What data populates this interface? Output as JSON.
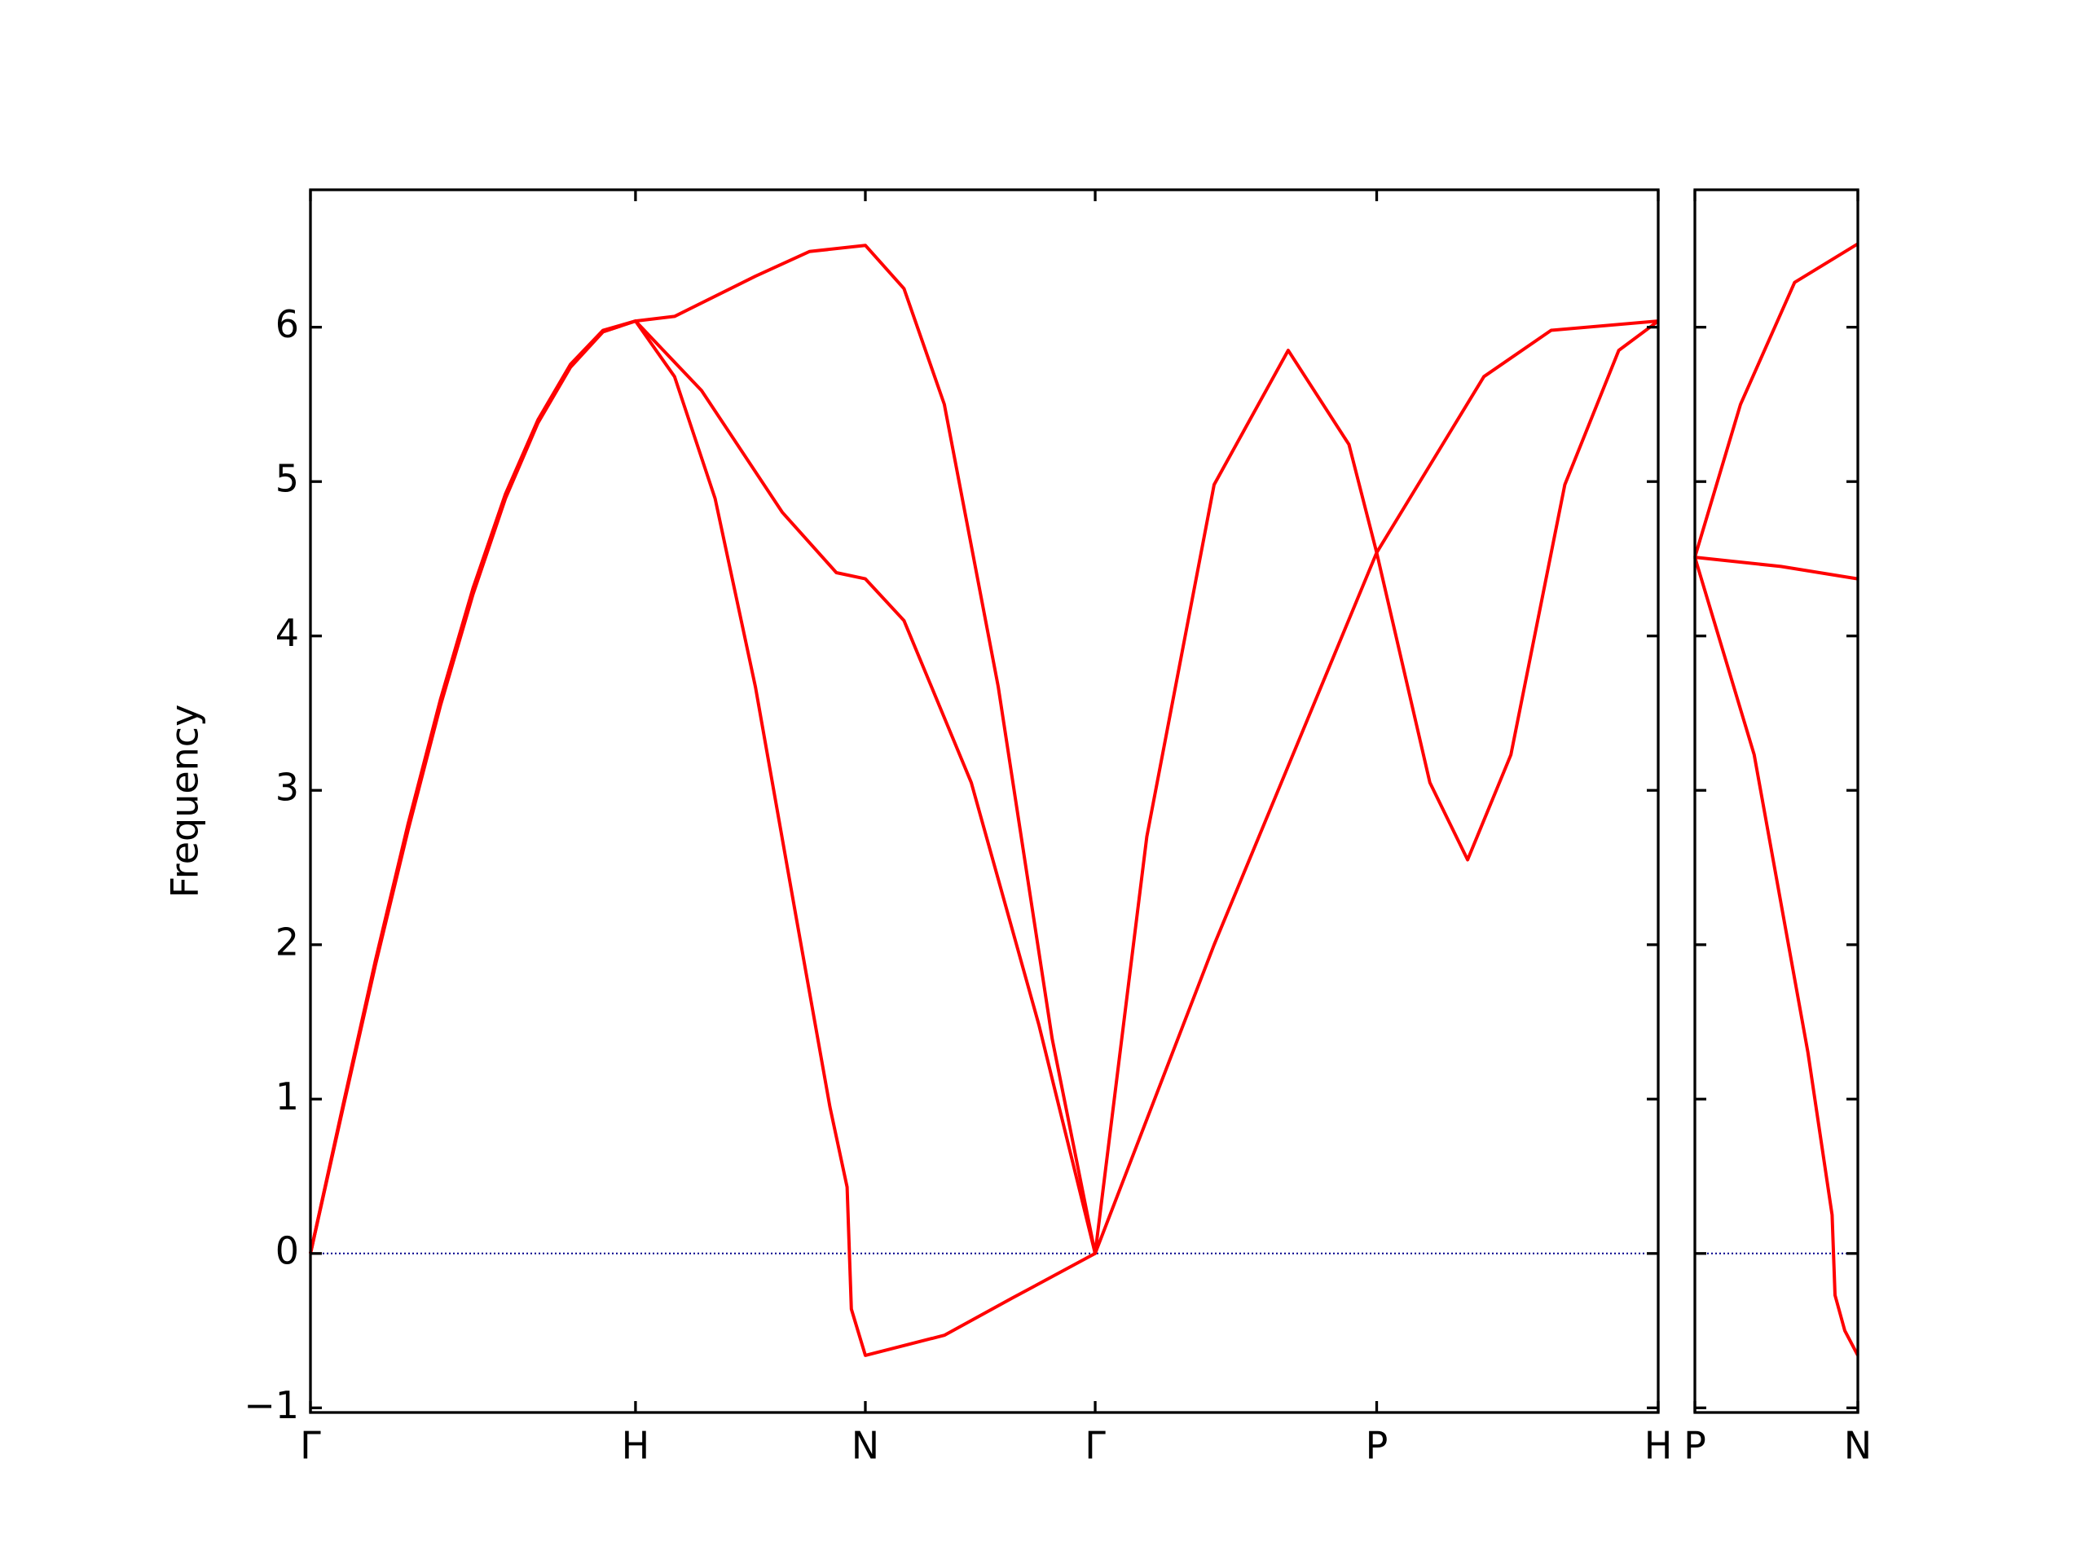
{
  "chart_data": [
    {
      "type": "line",
      "y_label": "Frequency",
      "xlim": [
        0,
        4.1463
      ],
      "ylim": [
        -1.03,
        6.89
      ],
      "xticks": [
        {
          "value": 0,
          "label": "Γ"
        },
        {
          "value": 1,
          "label": "H"
        },
        {
          "value": 1.7071,
          "label": "N"
        },
        {
          "value": 2.4142,
          "label": "Γ"
        },
        {
          "value": 3.2802,
          "label": "P"
        },
        {
          "value": 4.1463,
          "label": "H"
        }
      ],
      "yticks": [
        {
          "value": -1,
          "label": "−1"
        },
        0,
        1,
        2,
        3,
        4,
        5,
        6
      ],
      "zero_line": 0,
      "zero_line_color": "#00008b",
      "series": [
        {
          "color": "#ff0000",
          "x": [
            0,
            0.1,
            0.2,
            0.3,
            0.4,
            0.5,
            0.6,
            0.7,
            0.8,
            0.9,
            1,
            1.12,
            1.245,
            1.369,
            1.494,
            1.598,
            1.651,
            1.664,
            1.7071,
            1.95,
            2.158,
            2.4142,
            2.78,
            3.2802,
            3.61,
            3.817,
            4.1463
          ],
          "values": [
            0,
            0.94,
            1.87,
            2.74,
            3.55,
            4.27,
            4.89,
            5.38,
            5.74,
            5.97,
            6.04,
            5.68,
            4.89,
            3.67,
            2.18,
            0.95,
            0.43,
            -0.36,
            -0.66,
            -0.53,
            -0.29,
            0,
            2.0,
            4.54,
            5.68,
            5.98,
            6.04
          ]
        },
        {
          "color": "#ff0000",
          "x": [
            0,
            0.1,
            0.2,
            0.3,
            0.4,
            0.5,
            0.6,
            0.7,
            0.8,
            0.9,
            1,
            1.203,
            1.452,
            1.618,
            1.7071,
            1.826,
            2.033,
            2.241,
            2.4142,
            2.573,
            2.78,
            3.008,
            3.195,
            3.2802,
            3.444,
            3.56,
            3.693,
            3.859,
            4.025,
            4.1463
          ],
          "values": [
            0,
            0.95,
            1.89,
            2.76,
            3.57,
            4.29,
            4.9,
            5.39,
            5.75,
            5.97,
            6.04,
            5.59,
            4.8,
            4.41,
            4.37,
            4.1,
            3.05,
            1.48,
            0,
            2.7,
            4.98,
            5.85,
            5.24,
            4.54,
            3.05,
            2.55,
            3.23,
            4.98,
            5.85,
            6.04
          ]
        },
        {
          "color": "#ff0000",
          "x": [
            0,
            0.1,
            0.2,
            0.3,
            0.4,
            0.5,
            0.6,
            0.7,
            0.8,
            0.9,
            1,
            1.12,
            1.369,
            1.535,
            1.7071,
            1.826,
            1.95,
            2.116,
            2.282,
            2.4142
          ],
          "values": [
            0,
            0.96,
            1.9,
            2.78,
            3.59,
            4.31,
            4.92,
            5.4,
            5.76,
            5.98,
            6.04,
            6.07,
            6.33,
            6.49,
            6.53,
            6.25,
            5.5,
            3.67,
            1.39,
            0
          ]
        }
      ]
    },
    {
      "type": "line",
      "xlim": [
        0,
        0.5
      ],
      "ylim": [
        -1.03,
        6.89
      ],
      "xticks": [
        {
          "value": 0,
          "label": "P"
        },
        {
          "value": 0.5,
          "label": "N"
        }
      ],
      "yticks": [
        -1,
        0,
        1,
        2,
        3,
        4,
        5,
        6
      ],
      "zero_line": 0,
      "zero_line_color": "#00008b",
      "series": [
        {
          "color": "#ff0000",
          "x": [
            0,
            0.14,
            0.306,
            0.5
          ],
          "values": [
            4.51,
            5.5,
            6.29,
            6.54
          ]
        },
        {
          "color": "#ff0000",
          "x": [
            0,
            0.264,
            0.5
          ],
          "values": [
            4.51,
            4.45,
            4.37
          ]
        },
        {
          "color": "#ff0000",
          "x": [
            0,
            0.182,
            0.347,
            0.421,
            0.43,
            0.46,
            0.5
          ],
          "values": [
            4.51,
            3.23,
            1.3,
            0.25,
            -0.27,
            -0.5,
            -0.66
          ]
        }
      ]
    }
  ]
}
